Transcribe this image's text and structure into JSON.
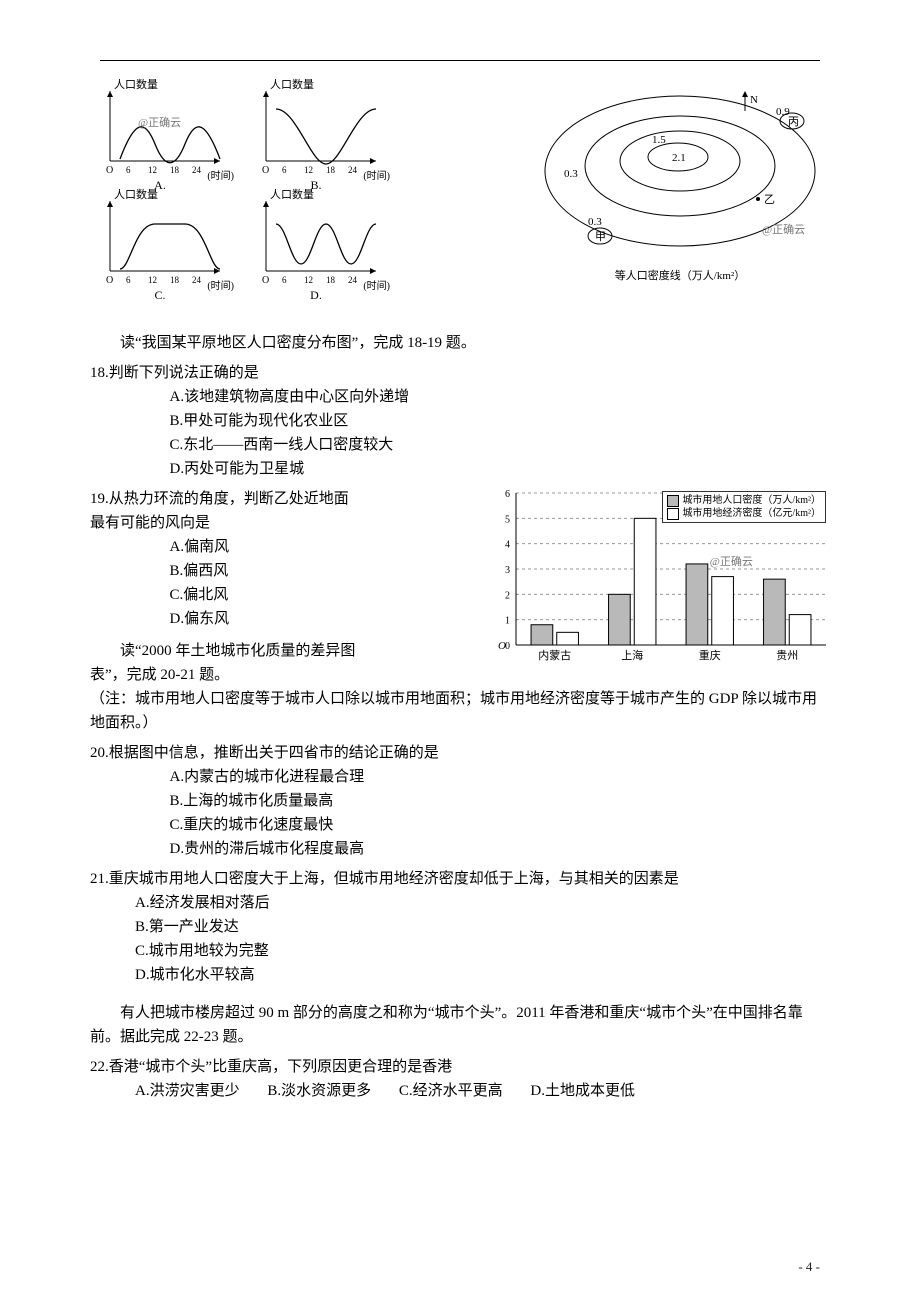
{
  "figures": {
    "miniplots": {
      "ylabel": "人口数量",
      "xlabel_suffix": "(时间)",
      "ticks": [
        "6",
        "12",
        "18",
        "24"
      ],
      "origin": "O",
      "plots": [
        {
          "letter": "A.",
          "curve_type": "双峰"
        },
        {
          "letter": "B.",
          "curve_type": "单谷"
        },
        {
          "letter": "C.",
          "curve_type": "单峰平台"
        },
        {
          "letter": "D.",
          "curve_type": "双谷"
        }
      ],
      "watermark": "@正确云"
    },
    "isomap": {
      "caption": "等人口密度线（万人/km²）",
      "north_label": "N",
      "contours": [
        "0.3",
        "0.9",
        "1.5",
        "2.1"
      ],
      "points": {
        "jia": "甲",
        "yi": "乙",
        "bing": "丙"
      },
      "watermark": "@正确云"
    },
    "barchart": {
      "type": "bar",
      "legend": [
        {
          "label": "城市用地人口密度（万人/km²）",
          "fill": "#b9b9b9"
        },
        {
          "label": "城市用地经济密度（亿元/km²）",
          "fill": "#ffffff"
        }
      ],
      "categories": [
        "内蒙古",
        "上海",
        "重庆",
        "贵州"
      ],
      "series_pop": [
        0.8,
        2.0,
        3.2,
        2.6
      ],
      "series_econ": [
        0.5,
        5.0,
        2.7,
        1.2
      ],
      "ylim": [
        0,
        6
      ],
      "ytick_step": 1,
      "grid_color": "#999999",
      "bar_pop_fill": "#b9b9b9",
      "bar_econ_fill": "#ffffff",
      "bar_stroke": "#000000",
      "watermark": "@正确云"
    }
  },
  "intro_1819": "读“我国某平原地区人口密度分布图”，完成 18-19 题。",
  "q18": {
    "stem": "18.判断下列说法正确的是",
    "A": "A.该地建筑物高度由中心区向外递增",
    "B": "B.甲处可能为现代化农业区",
    "C": "C.东北——西南一线人口密度较大",
    "D": "D.丙处可能为卫星城"
  },
  "q19": {
    "stem_line1": "19.从热力环流的角度，判断乙处近地面",
    "stem_line2": "最有可能的风向是",
    "A": "A.偏南风",
    "B": "B.偏西风",
    "C": "C.偏北风",
    "D": "D.偏东风"
  },
  "intro_2021_a": "读“2000 年土地城市化质量的差异图",
  "intro_2021_b": "表”，完成 20-21 题。",
  "note_2021": "（注：城市用地人口密度等于城市人口除以城市用地面积；城市用地经济密度等于城市产生的 GDP 除以城市用地面积。）",
  "q20": {
    "stem": "20.根据图中信息，推断出关于四省市的结论正确的是",
    "A": "A.内蒙古的城市化进程最合理",
    "B": "B.上海的城市化质量最高",
    "C": "C.重庆的城市化速度最快",
    "D": "D.贵州的滞后城市化程度最高"
  },
  "q21": {
    "stem": "21.重庆城市用地人口密度大于上海，但城市用地经济密度却低于上海，与其相关的因素是",
    "A": "A.经济发展相对落后",
    "B": "B.第一产业发达",
    "C": "C.城市用地较为完整",
    "D": "D.城市化水平较高"
  },
  "intro_2223": "有人把城市楼房超过 90 m 部分的高度之和称为“城市个头”。2011 年香港和重庆“城市个头”在中国排名靠前。据此完成 22-23 题。",
  "q22": {
    "stem": "22.香港“城市个头”比重庆高，下列原因更合理的是香港",
    "A": "A.洪涝灾害更少",
    "B": "B.淡水资源更多",
    "C": "C.经济水平更高",
    "D": "D.土地成本更低"
  },
  "pagenum": "- 4 -"
}
